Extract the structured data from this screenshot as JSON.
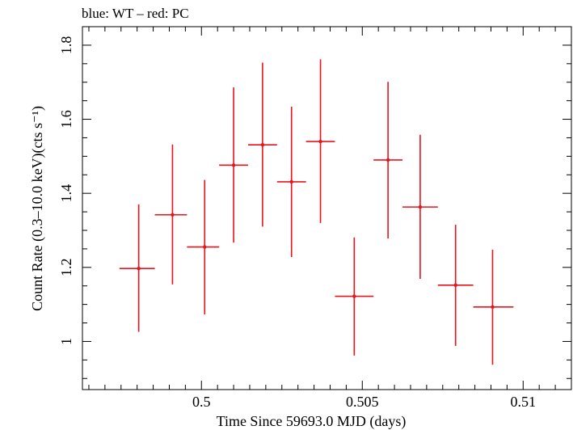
{
  "chart_data": {
    "type": "scatter",
    "title": "blue: WT – red: PC",
    "xlabel": "Time Since 59693.0 MJD (days)",
    "ylabel": "Count Rate (0.3–10.0 keV)(cts s⁻¹)",
    "xlim": [
      0.4963,
      0.5115
    ],
    "ylim": [
      0.87,
      1.85
    ],
    "x_ticks": [
      {
        "value": 0.5,
        "label": "0.5"
      },
      {
        "value": 0.505,
        "label": "0.505"
      },
      {
        "value": 0.51,
        "label": "0.51"
      }
    ],
    "y_ticks": [
      {
        "value": 1.0,
        "label": "1"
      },
      {
        "value": 1.2,
        "label": "1.2"
      },
      {
        "value": 1.4,
        "label": "1.4"
      },
      {
        "value": 1.6,
        "label": "1.6"
      },
      {
        "value": 1.8,
        "label": "1.8"
      }
    ],
    "series": [
      {
        "name": "PC",
        "color": "#e8141c",
        "points": [
          {
            "x": 0.49805,
            "y": 1.197,
            "x_lo": 0.49745,
            "x_hi": 0.49855,
            "y_lo": 1.026,
            "y_hi": 1.37
          },
          {
            "x": 0.4991,
            "y": 1.342,
            "x_lo": 0.49855,
            "x_hi": 0.49955,
            "y_lo": 1.154,
            "y_hi": 1.532
          },
          {
            "x": 0.5001,
            "y": 1.255,
            "x_lo": 0.49955,
            "x_hi": 0.50055,
            "y_lo": 1.073,
            "y_hi": 1.436
          },
          {
            "x": 0.501,
            "y": 1.476,
            "x_lo": 0.50055,
            "x_hi": 0.50145,
            "y_lo": 1.267,
            "y_hi": 1.686
          },
          {
            "x": 0.5019,
            "y": 1.531,
            "x_lo": 0.50145,
            "x_hi": 0.50235,
            "y_lo": 1.31,
            "y_hi": 1.753
          },
          {
            "x": 0.5028,
            "y": 1.431,
            "x_lo": 0.50235,
            "x_hi": 0.50325,
            "y_lo": 1.228,
            "y_hi": 1.634
          },
          {
            "x": 0.5037,
            "y": 1.54,
            "x_lo": 0.50325,
            "x_hi": 0.50415,
            "y_lo": 1.32,
            "y_hi": 1.762
          },
          {
            "x": 0.50475,
            "y": 1.122,
            "x_lo": 0.50415,
            "x_hi": 0.50535,
            "y_lo": 0.962,
            "y_hi": 1.281
          },
          {
            "x": 0.5058,
            "y": 1.49,
            "x_lo": 0.50535,
            "x_hi": 0.50625,
            "y_lo": 1.278,
            "y_hi": 1.701
          },
          {
            "x": 0.5068,
            "y": 1.363,
            "x_lo": 0.50625,
            "x_hi": 0.50735,
            "y_lo": 1.169,
            "y_hi": 1.558
          },
          {
            "x": 0.5079,
            "y": 1.152,
            "x_lo": 0.50735,
            "x_hi": 0.50845,
            "y_lo": 0.988,
            "y_hi": 1.315
          },
          {
            "x": 0.50905,
            "y": 1.093,
            "x_lo": 0.50845,
            "x_hi": 0.5097,
            "y_lo": 0.937,
            "y_hi": 1.248
          }
        ]
      }
    ],
    "grid": false,
    "legend": "none"
  }
}
